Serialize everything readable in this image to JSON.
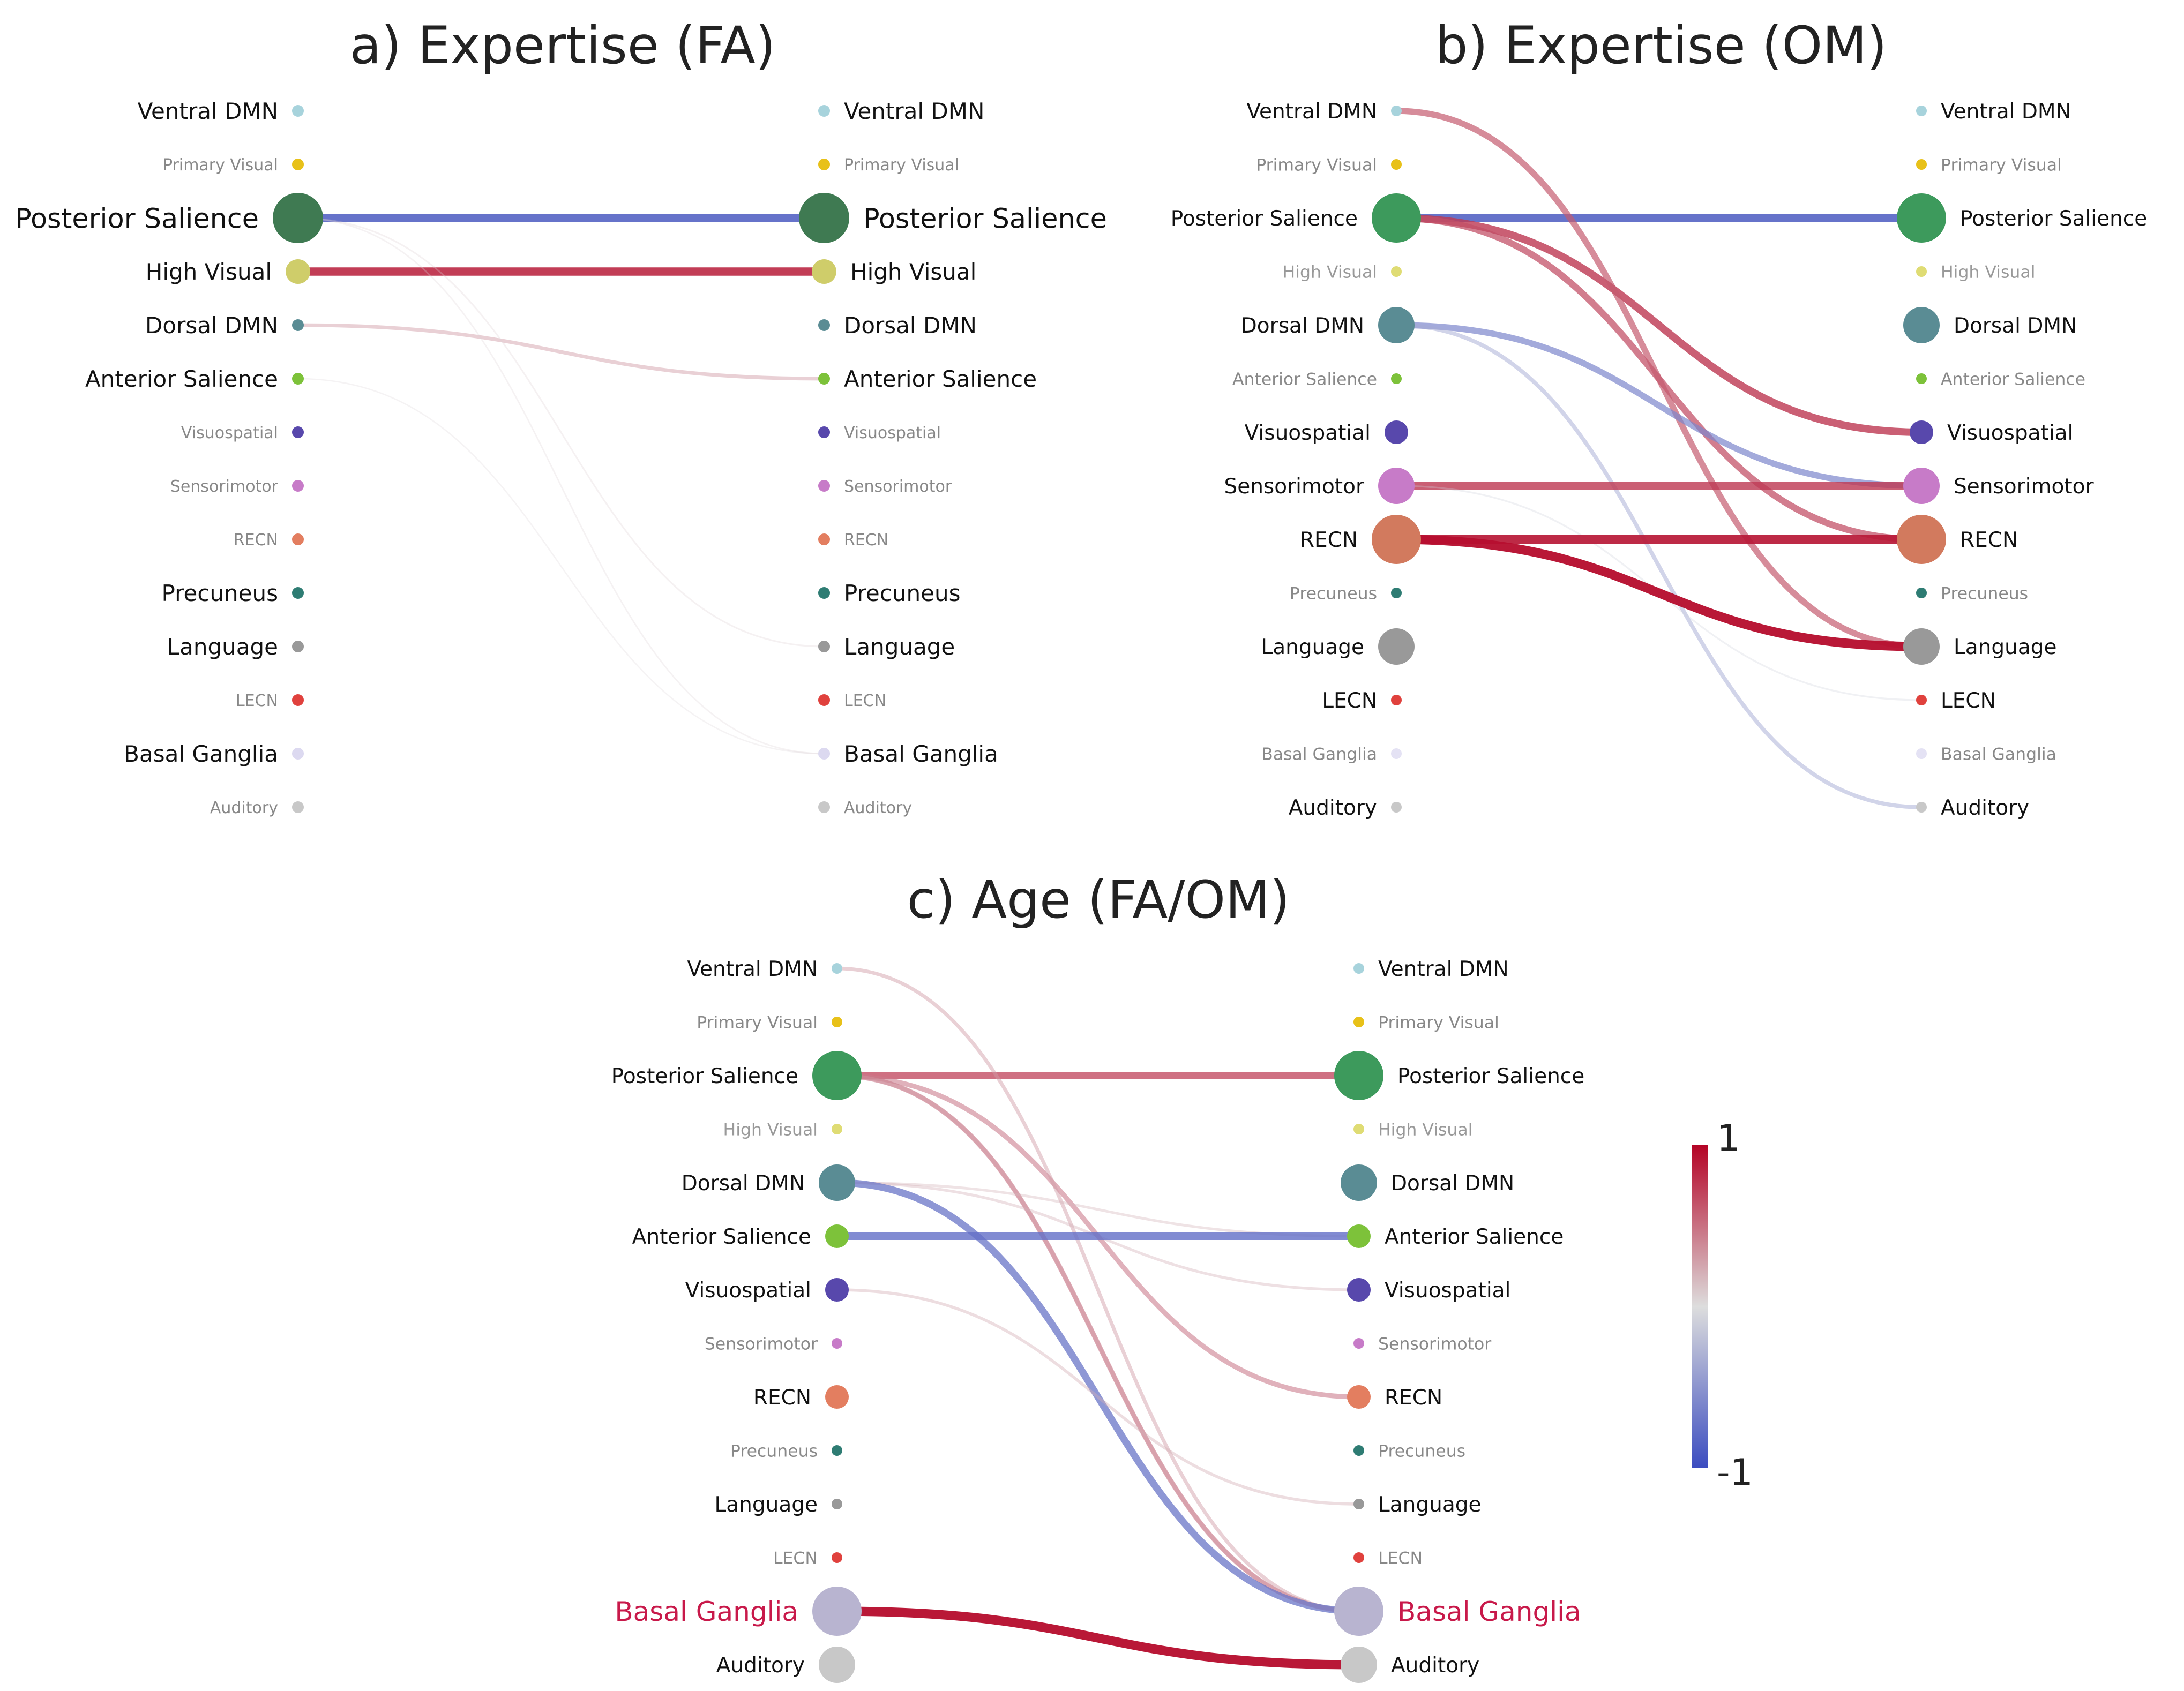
{
  "chart_data": [
    {
      "type": "chord-connectivity",
      "id": "fa",
      "title": "a) Expertise (FA)",
      "nodes_left": [
        {
          "label": "Ventral DMN",
          "color": "#a7d3dc",
          "size": 1,
          "label_size": 3,
          "label_color": "#111111"
        },
        {
          "label": "Primary Visual",
          "color": "#e8c119",
          "size": 1,
          "label_size": 1,
          "label_color": "#888888"
        },
        {
          "label": "Posterior Salience",
          "color": "#3f7a52",
          "size": 4,
          "label_size": 4,
          "label_color": "#111111"
        },
        {
          "label": "High Visual",
          "color": "#cfcd6a",
          "size": 2,
          "label_size": 3,
          "label_color": "#111111"
        },
        {
          "label": "Dorsal DMN",
          "color": "#5a8c94",
          "size": 1,
          "label_size": 3,
          "label_color": "#111111"
        },
        {
          "label": "Anterior Salience",
          "color": "#7dc23a",
          "size": 1,
          "label_size": 3,
          "label_color": "#111111"
        },
        {
          "label": "Visuospatial",
          "color": "#5848ac",
          "size": 1,
          "label_size": 1,
          "label_color": "#888888"
        },
        {
          "label": "Sensorimotor",
          "color": "#c77bc8",
          "size": 1,
          "label_size": 1,
          "label_color": "#888888"
        },
        {
          "label": "RECN",
          "color": "#e37e60",
          "size": 1,
          "label_size": 1,
          "label_color": "#888888"
        },
        {
          "label": "Precuneus",
          "color": "#2e7c73",
          "size": 1,
          "label_size": 3,
          "label_color": "#111111"
        },
        {
          "label": "Language",
          "color": "#999999",
          "size": 1,
          "label_size": 3,
          "label_color": "#111111"
        },
        {
          "label": "LECN",
          "color": "#e0413d",
          "size": 1,
          "label_size": 1,
          "label_color": "#888888"
        },
        {
          "label": "Basal Ganglia",
          "color": "#dcd9f0",
          "size": 1,
          "label_size": 3,
          "label_color": "#111111"
        },
        {
          "label": "Auditory",
          "color": "#c8c8c8",
          "size": 1,
          "label_size": 1,
          "label_color": "#888888"
        }
      ],
      "nodes_right": [
        {
          "label": "Ventral DMN",
          "color": "#a7d3dc",
          "size": 1,
          "label_size": 3,
          "label_color": "#111111"
        },
        {
          "label": "Primary Visual",
          "color": "#e8c119",
          "size": 1,
          "label_size": 1,
          "label_color": "#888888"
        },
        {
          "label": "Posterior Salience",
          "color": "#3f7a52",
          "size": 4,
          "label_size": 4,
          "label_color": "#111111"
        },
        {
          "label": "High Visual",
          "color": "#cfcd6a",
          "size": 2,
          "label_size": 3,
          "label_color": "#111111"
        },
        {
          "label": "Dorsal DMN",
          "color": "#5a8c94",
          "size": 1,
          "label_size": 3,
          "label_color": "#111111"
        },
        {
          "label": "Anterior Salience",
          "color": "#7dc23a",
          "size": 1,
          "label_size": 3,
          "label_color": "#111111"
        },
        {
          "label": "Visuospatial",
          "color": "#5848ac",
          "size": 1,
          "label_size": 1,
          "label_color": "#888888"
        },
        {
          "label": "Sensorimotor",
          "color": "#c77bc8",
          "size": 1,
          "label_size": 1,
          "label_color": "#888888"
        },
        {
          "label": "RECN",
          "color": "#e37e60",
          "size": 1,
          "label_size": 1,
          "label_color": "#888888"
        },
        {
          "label": "Precuneus",
          "color": "#2e7c73",
          "size": 1,
          "label_size": 3,
          "label_color": "#111111"
        },
        {
          "label": "Language",
          "color": "#999999",
          "size": 1,
          "label_size": 3,
          "label_color": "#111111"
        },
        {
          "label": "LECN",
          "color": "#e0413d",
          "size": 1,
          "label_size": 1,
          "label_color": "#888888"
        },
        {
          "label": "Basal Ganglia",
          "color": "#dcd9f0",
          "size": 1,
          "label_size": 3,
          "label_color": "#111111"
        },
        {
          "label": "Auditory",
          "color": "#c8c8c8",
          "size": 1,
          "label_size": 1,
          "label_color": "#888888"
        }
      ],
      "links": [
        {
          "source": "Posterior Salience",
          "target": "Posterior Salience",
          "weight": -0.85
        },
        {
          "source": "High Visual",
          "target": "High Visual",
          "weight": 0.85
        },
        {
          "source": "Dorsal DMN",
          "target": "Anterior Salience",
          "weight": 0.3
        },
        {
          "source": "Posterior Salience",
          "target": "Language",
          "weight": 0.06
        },
        {
          "source": "Posterior Salience",
          "target": "Basal Ganglia",
          "weight": 0.05
        },
        {
          "source": "Anterior Salience",
          "target": "Basal Ganglia",
          "weight": 0.04
        }
      ]
    },
    {
      "type": "chord-connectivity",
      "id": "om",
      "title": "b) Expertise (OM)",
      "nodes_left": [
        {
          "label": "Ventral DMN",
          "color": "#a7d3dc",
          "size": 1,
          "label_size": 3,
          "label_color": "#111111"
        },
        {
          "label": "Primary Visual",
          "color": "#e8c119",
          "size": 1,
          "label_size": 2,
          "label_color": "#888888"
        },
        {
          "label": "Posterior Salience",
          "color": "#3d9a5c",
          "size": 4,
          "label_size": 3,
          "label_color": "#111111"
        },
        {
          "label": "High Visual",
          "color": "#dfdc74",
          "size": 1,
          "label_size": 2,
          "label_color": "#999999"
        },
        {
          "label": "Dorsal DMN",
          "color": "#5a8c94",
          "size": 3,
          "label_size": 3,
          "label_color": "#111111"
        },
        {
          "label": "Anterior Salience",
          "color": "#7dc23a",
          "size": 1,
          "label_size": 2,
          "label_color": "#888888"
        },
        {
          "label": "Visuospatial",
          "color": "#5848ac",
          "size": 2,
          "label_size": 3,
          "label_color": "#111111"
        },
        {
          "label": "Sensorimotor",
          "color": "#c77bc8",
          "size": 3,
          "label_size": 3,
          "label_color": "#111111"
        },
        {
          "label": "RECN",
          "color": "#d27a5e",
          "size": 4,
          "label_size": 3,
          "label_color": "#111111"
        },
        {
          "label": "Precuneus",
          "color": "#2e7c73",
          "size": 1,
          "label_size": 2,
          "label_color": "#888888"
        },
        {
          "label": "Language",
          "color": "#999999",
          "size": 3,
          "label_size": 3,
          "label_color": "#111111"
        },
        {
          "label": "LECN",
          "color": "#e0413d",
          "size": 1,
          "label_size": 3,
          "label_color": "#111111"
        },
        {
          "label": "Basal Ganglia",
          "color": "#e4e2f4",
          "size": 1,
          "label_size": 2,
          "label_color": "#888888"
        },
        {
          "label": "Auditory",
          "color": "#c8c8c8",
          "size": 1,
          "label_size": 3,
          "label_color": "#111111"
        }
      ],
      "nodes_right": [
        {
          "label": "Ventral DMN",
          "color": "#a7d3dc",
          "size": 1,
          "label_size": 3,
          "label_color": "#111111"
        },
        {
          "label": "Primary Visual",
          "color": "#e8c119",
          "size": 1,
          "label_size": 2,
          "label_color": "#888888"
        },
        {
          "label": "Posterior Salience",
          "color": "#3d9a5c",
          "size": 4,
          "label_size": 3,
          "label_color": "#111111"
        },
        {
          "label": "High Visual",
          "color": "#dfdc74",
          "size": 1,
          "label_size": 2,
          "label_color": "#999999"
        },
        {
          "label": "Dorsal DMN",
          "color": "#5a8c94",
          "size": 3,
          "label_size": 3,
          "label_color": "#111111"
        },
        {
          "label": "Anterior Salience",
          "color": "#7dc23a",
          "size": 1,
          "label_size": 2,
          "label_color": "#888888"
        },
        {
          "label": "Visuospatial",
          "color": "#5848ac",
          "size": 2,
          "label_size": 3,
          "label_color": "#111111"
        },
        {
          "label": "Sensorimotor",
          "color": "#c77bc8",
          "size": 3,
          "label_size": 3,
          "label_color": "#111111"
        },
        {
          "label": "RECN",
          "color": "#d27a5e",
          "size": 4,
          "label_size": 3,
          "label_color": "#111111"
        },
        {
          "label": "Precuneus",
          "color": "#2e7c73",
          "size": 1,
          "label_size": 2,
          "label_color": "#888888"
        },
        {
          "label": "Language",
          "color": "#999999",
          "size": 3,
          "label_size": 3,
          "label_color": "#111111"
        },
        {
          "label": "LECN",
          "color": "#e0413d",
          "size": 1,
          "label_size": 3,
          "label_color": "#111111"
        },
        {
          "label": "Basal Ganglia",
          "color": "#e4e2f4",
          "size": 1,
          "label_size": 2,
          "label_color": "#888888"
        },
        {
          "label": "Auditory",
          "color": "#c8c8c8",
          "size": 1,
          "label_size": 3,
          "label_color": "#111111"
        }
      ],
      "links": [
        {
          "source": "Posterior Salience",
          "target": "Posterior Salience",
          "weight": -0.85
        },
        {
          "source": "Posterior Salience",
          "target": "Visuospatial",
          "weight": 0.75
        },
        {
          "source": "Posterior Salience",
          "target": "RECN",
          "weight": 0.65
        },
        {
          "source": "Ventral DMN",
          "target": "Language",
          "weight": 0.6
        },
        {
          "source": "Dorsal DMN",
          "target": "Sensorimotor",
          "weight": -0.6
        },
        {
          "source": "Dorsal DMN",
          "target": "Auditory",
          "weight": -0.35
        },
        {
          "source": "Sensorimotor",
          "target": "Sensorimotor",
          "weight": 0.75
        },
        {
          "source": "Sensorimotor",
          "target": "LECN",
          "weight": -0.08
        },
        {
          "source": "RECN",
          "target": "RECN",
          "weight": 0.9
        },
        {
          "source": "RECN",
          "target": "Language",
          "weight": 0.95
        }
      ]
    },
    {
      "type": "chord-connectivity",
      "id": "age",
      "title": "c) Age (FA/OM)",
      "nodes_left": [
        {
          "label": "Ventral DMN",
          "color": "#a7d3dc",
          "size": 1,
          "label_size": 3,
          "label_color": "#111111"
        },
        {
          "label": "Primary Visual",
          "color": "#e8c119",
          "size": 1,
          "label_size": 2,
          "label_color": "#888888"
        },
        {
          "label": "Posterior Salience",
          "color": "#3d9a5c",
          "size": 4,
          "label_size": 3,
          "label_color": "#111111"
        },
        {
          "label": "High Visual",
          "color": "#dfdc74",
          "size": 1,
          "label_size": 2,
          "label_color": "#999999"
        },
        {
          "label": "Dorsal DMN",
          "color": "#5a8c94",
          "size": 3,
          "label_size": 3,
          "label_color": "#111111"
        },
        {
          "label": "Anterior Salience",
          "color": "#7dc23a",
          "size": 2,
          "label_size": 3,
          "label_color": "#111111"
        },
        {
          "label": "Visuospatial",
          "color": "#5848ac",
          "size": 2,
          "label_size": 3,
          "label_color": "#111111"
        },
        {
          "label": "Sensorimotor",
          "color": "#c77bc8",
          "size": 1,
          "label_size": 2,
          "label_color": "#888888"
        },
        {
          "label": "RECN",
          "color": "#e37e60",
          "size": 2,
          "label_size": 3,
          "label_color": "#111111"
        },
        {
          "label": "Precuneus",
          "color": "#2e7c73",
          "size": 1,
          "label_size": 2,
          "label_color": "#888888"
        },
        {
          "label": "Language",
          "color": "#999999",
          "size": 1,
          "label_size": 3,
          "label_color": "#111111"
        },
        {
          "label": "LECN",
          "color": "#e0413d",
          "size": 1,
          "label_size": 2,
          "label_color": "#888888"
        },
        {
          "label": "Basal Ganglia",
          "color": "#b8b4d0",
          "size": 4,
          "label_size": 4,
          "label_color": "#c8194a"
        },
        {
          "label": "Auditory",
          "color": "#c8c8c8",
          "size": 3,
          "label_size": 3,
          "label_color": "#111111"
        }
      ],
      "nodes_right": [
        {
          "label": "Ventral DMN",
          "color": "#a7d3dc",
          "size": 1,
          "label_size": 3,
          "label_color": "#111111"
        },
        {
          "label": "Primary Visual",
          "color": "#e8c119",
          "size": 1,
          "label_size": 2,
          "label_color": "#888888"
        },
        {
          "label": "Posterior Salience",
          "color": "#3d9a5c",
          "size": 4,
          "label_size": 3,
          "label_color": "#111111"
        },
        {
          "label": "High Visual",
          "color": "#dfdc74",
          "size": 1,
          "label_size": 2,
          "label_color": "#999999"
        },
        {
          "label": "Dorsal DMN",
          "color": "#5a8c94",
          "size": 3,
          "label_size": 3,
          "label_color": "#111111"
        },
        {
          "label": "Anterior Salience",
          "color": "#7dc23a",
          "size": 2,
          "label_size": 3,
          "label_color": "#111111"
        },
        {
          "label": "Visuospatial",
          "color": "#5848ac",
          "size": 2,
          "label_size": 3,
          "label_color": "#111111"
        },
        {
          "label": "Sensorimotor",
          "color": "#c77bc8",
          "size": 1,
          "label_size": 2,
          "label_color": "#888888"
        },
        {
          "label": "RECN",
          "color": "#e37e60",
          "size": 2,
          "label_size": 3,
          "label_color": "#111111"
        },
        {
          "label": "Precuneus",
          "color": "#2e7c73",
          "size": 1,
          "label_size": 2,
          "label_color": "#888888"
        },
        {
          "label": "Language",
          "color": "#999999",
          "size": 1,
          "label_size": 3,
          "label_color": "#111111"
        },
        {
          "label": "LECN",
          "color": "#e0413d",
          "size": 1,
          "label_size": 2,
          "label_color": "#888888"
        },
        {
          "label": "Basal Ganglia",
          "color": "#b8b4d0",
          "size": 4,
          "label_size": 4,
          "label_color": "#c8194a"
        },
        {
          "label": "Auditory",
          "color": "#c8c8c8",
          "size": 3,
          "label_size": 3,
          "label_color": "#111111"
        }
      ],
      "links": [
        {
          "source": "Posterior Salience",
          "target": "Posterior Salience",
          "weight": 0.7
        },
        {
          "source": "Posterior Salience",
          "target": "RECN",
          "weight": 0.45
        },
        {
          "source": "Posterior Salience",
          "target": "Basal Ganglia",
          "weight": 0.45
        },
        {
          "source": "Posterior Salience",
          "target": "Basal Ganglia",
          "weight": 0.35
        },
        {
          "source": "Ventral DMN",
          "target": "Basal Ganglia",
          "weight": 0.3
        },
        {
          "source": "Dorsal DMN",
          "target": "Anterior Salience",
          "weight": 0.18
        },
        {
          "source": "Dorsal DMN",
          "target": "Visuospatial",
          "weight": 0.2
        },
        {
          "source": "Dorsal DMN",
          "target": "Basal Ganglia",
          "weight": -0.7
        },
        {
          "source": "Anterior Salience",
          "target": "Anterior Salience",
          "weight": -0.75
        },
        {
          "source": "Visuospatial",
          "target": "Language",
          "weight": 0.22
        },
        {
          "source": "Basal Ganglia",
          "target": "Auditory",
          "weight": 0.95
        }
      ]
    }
  ],
  "colorbar": {
    "max_label": "1",
    "min_label": "-1",
    "max": 1,
    "min": -1,
    "colors": [
      "#3b4cc0",
      "#dddddd",
      "#b40426"
    ]
  }
}
